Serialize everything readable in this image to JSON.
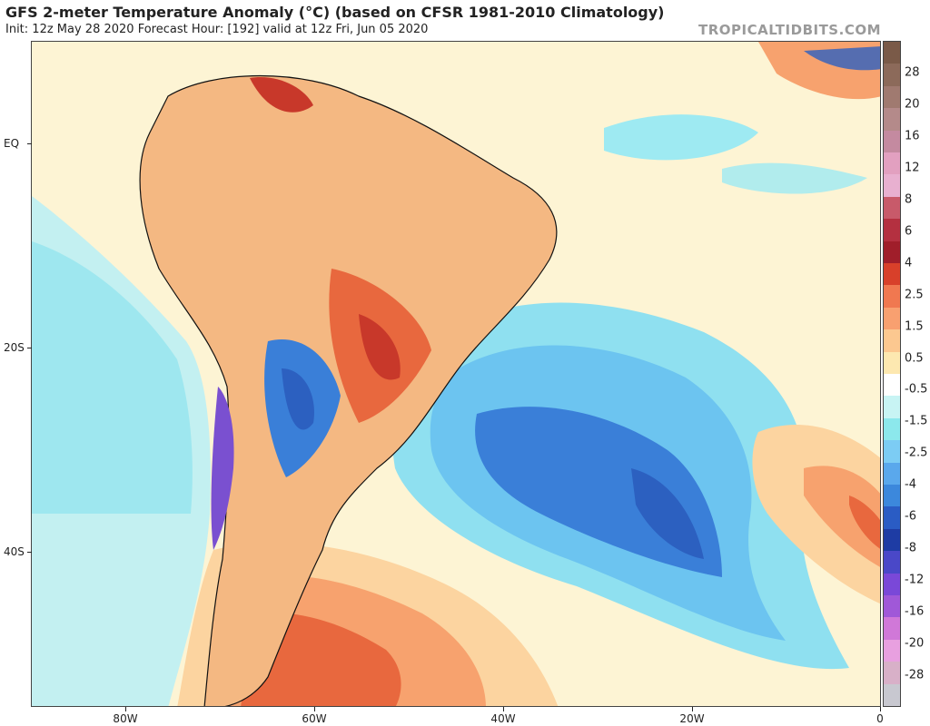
{
  "header": {
    "title": "GFS 2-meter Temperature Anomaly (°C) (based on CFSR 1981-2010 Climatology)",
    "subtitle": "Init: 12z May 28 2020   Forecast Hour: [192]   valid at 12z Fri, Jun 05 2020",
    "brand": "TROPICALTIDBITS.COM"
  },
  "axes": {
    "lat_labels": [
      "EQ",
      "20S",
      "40S"
    ],
    "lon_labels": [
      "80W",
      "60W",
      "40W",
      "20W",
      "0"
    ]
  },
  "colorbar": {
    "labels": [
      "28",
      "20",
      "16",
      "12",
      "8",
      "6",
      "4",
      "2.5",
      "1.5",
      "0.5",
      "-0.5",
      "-1.5",
      "-2.5",
      "-4",
      "-6",
      "-8",
      "-12",
      "-16",
      "-20",
      "-28"
    ],
    "colors": [
      "#7a5a48",
      "#8c6a5a",
      "#a07a70",
      "#b48a8a",
      "#c48aa0",
      "#e2a0c0",
      "#e8b0d0",
      "#c85a6a",
      "#b43040",
      "#a01e2a",
      "#d8402a",
      "#f07850",
      "#f8a070",
      "#fcc890",
      "#fde8b0",
      "#ffffff",
      "#c8f4f4",
      "#8ce8ec",
      "#7cccf4",
      "#5aa8ec",
      "#3c88dc",
      "#2a5cc4",
      "#1e3ca4",
      "#4a48c8",
      "#7a48d8",
      "#a058d8",
      "#d078d8",
      "#e8a0e0",
      "#d8b0c8",
      "#c8c8d0"
    ]
  },
  "map": {
    "colors": {
      "ocean_neutral": "#fdf4d4",
      "cool_light": "#9eeaf2",
      "cool_mid": "#6cc4f0",
      "cool_deep": "#3a7fd8",
      "cool_core": "#2c60c0",
      "warm_light": "#fcd4a0",
      "warm_mid": "#f7a26e",
      "warm_deep": "#e8683e",
      "hot": "#c8382a",
      "purple": "#7a50d0",
      "border": "#111111"
    }
  }
}
